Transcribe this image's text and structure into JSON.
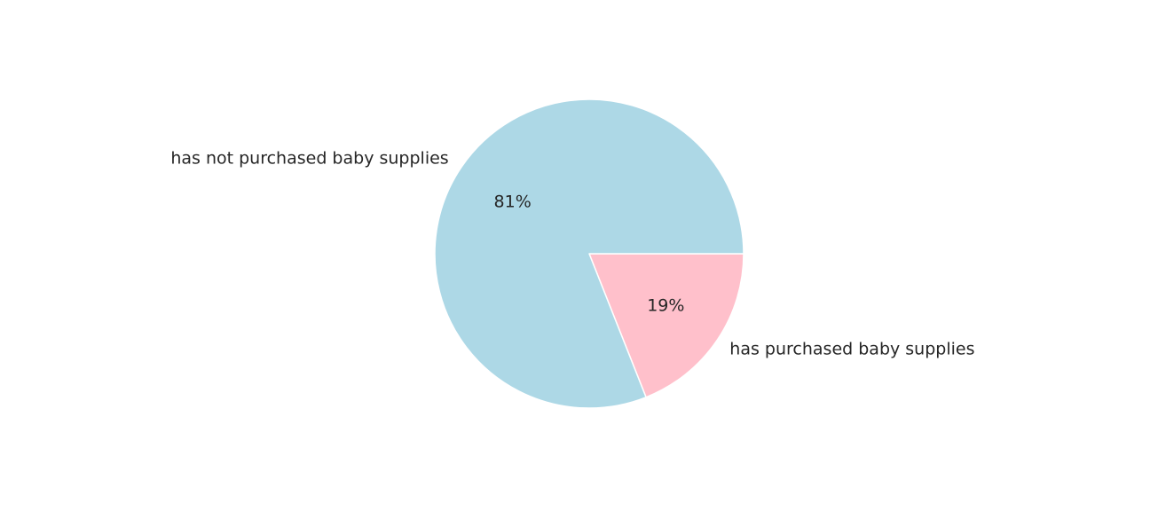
{
  "chart_data": {
    "type": "pie",
    "title": "",
    "categories": [
      "has purchased baby supplies",
      "has not purchased baby supplies"
    ],
    "values": [
      19,
      81
    ],
    "value_labels": [
      "19%",
      "81%"
    ],
    "colors": [
      "#ffc0cb",
      "#add8e6"
    ],
    "start_angle_deg": 0,
    "direction": "clockwise-on-screen",
    "legend": "none"
  }
}
